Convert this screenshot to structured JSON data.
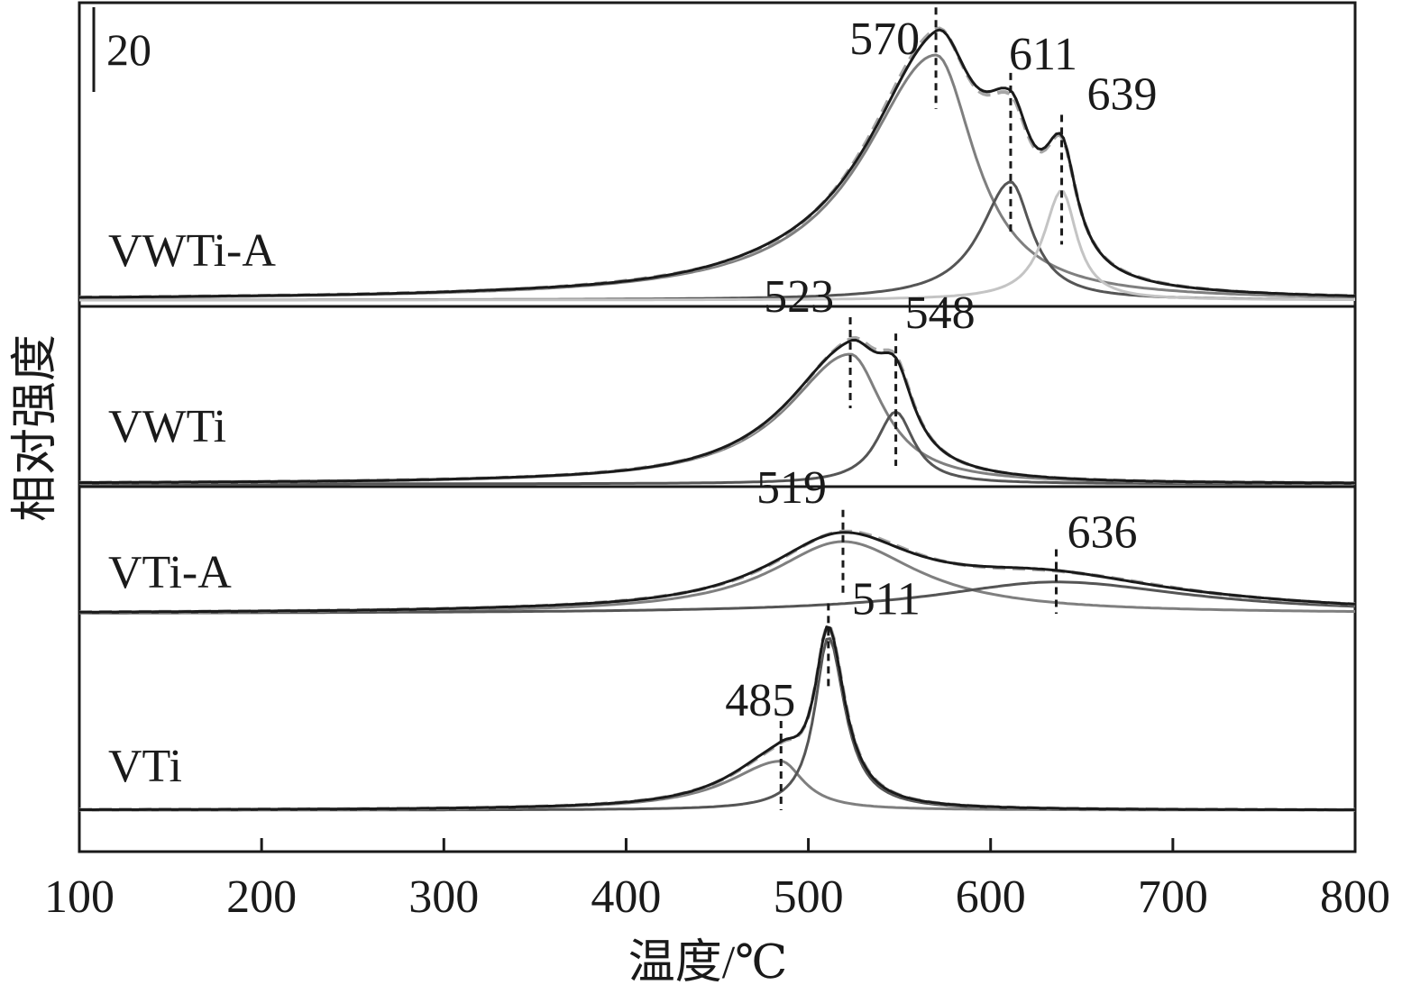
{
  "chart_data": {
    "type": "line",
    "xlabel": "温度/℃",
    "ylabel": "相对强度",
    "xlim": [
      100,
      800
    ],
    "xticks": [
      100,
      200,
      300,
      400,
      500,
      600,
      700,
      800
    ],
    "scale_bar_label": "20",
    "grid": false,
    "colors": {
      "measured": "#1a1a1a",
      "fit_sum": "#a6a6a6",
      "comp_main": "#7f7f7f",
      "comp_second": "#555555",
      "comp_third": "#c4c4c4",
      "marker": "#1a1a1a"
    },
    "panels": [
      {
        "name": "VWTi-A",
        "peaks": [
          {
            "label": "570",
            "center": 570,
            "height": 85,
            "left_width": 48,
            "right_width": 26
          },
          {
            "label": "611",
            "center": 611,
            "height": 41,
            "left_width": 20,
            "right_width": 14
          },
          {
            "label": "639",
            "center": 639,
            "height": 38,
            "left_width": 12,
            "right_width": 10
          }
        ]
      },
      {
        "name": "VWTi",
        "peaks": [
          {
            "label": "523",
            "center": 523,
            "height": 45,
            "left_width": 42,
            "right_width": 22
          },
          {
            "label": "548",
            "center": 548,
            "height": 25,
            "left_width": 13,
            "right_width": 12
          }
        ]
      },
      {
        "name": "VTi-A",
        "peaks": [
          {
            "label": "519",
            "center": 519,
            "height": 25,
            "left_width": 48,
            "right_width": 50
          },
          {
            "label": "636",
            "center": 636,
            "height": 11,
            "left_width": 80,
            "right_width": 90
          }
        ]
      },
      {
        "name": "VTi",
        "peaks": [
          {
            "label": "485",
            "center": 485,
            "height": 17,
            "left_width": 35,
            "right_width": 15
          },
          {
            "label": "511",
            "center": 511,
            "height": 60,
            "left_width": 9,
            "right_width": 11
          }
        ]
      }
    ]
  }
}
